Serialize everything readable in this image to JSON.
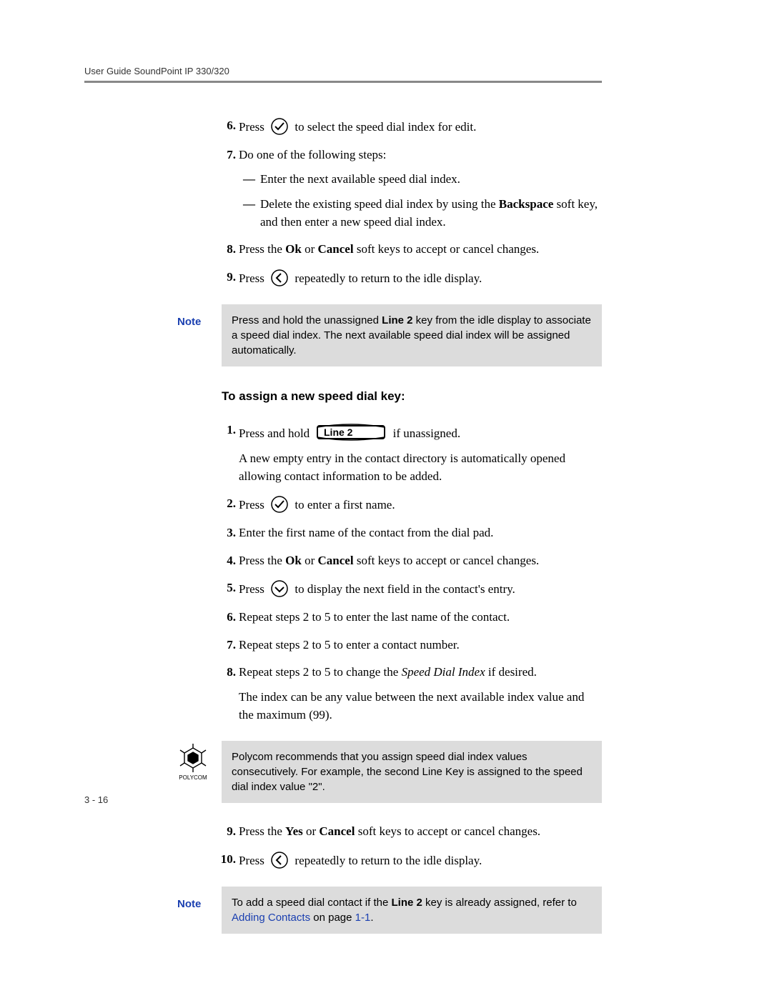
{
  "header": {
    "running": "User Guide SoundPoint IP 330/320"
  },
  "icons": {
    "check_stroke": "#000000",
    "back_stroke": "#000000",
    "down_stroke": "#000000",
    "line2_label": "Line 2",
    "line2_stroke": "#000000"
  },
  "steps_a": [
    {
      "num": "6.",
      "parts": [
        "Press ",
        "{check}",
        " to select the speed dial index for edit."
      ]
    },
    {
      "num": "7.",
      "parts": [
        "Do one of the following steps:"
      ],
      "subs": [
        {
          "dash": "—",
          "text_parts": [
            "Enter the next available speed dial index."
          ]
        },
        {
          "dash": "—",
          "text_parts": [
            "Delete the existing speed dial index by using the ",
            {
              "b": "Backspace"
            },
            " soft key, and then enter a new speed dial index."
          ]
        }
      ]
    },
    {
      "num": "8.",
      "parts": [
        "Press the ",
        {
          "b": "Ok"
        },
        " or ",
        {
          "b": "Cancel"
        },
        " soft keys to accept or cancel changes."
      ]
    },
    {
      "num": "9.",
      "parts": [
        "Press ",
        "{back}",
        " repeatedly to return to the idle display."
      ]
    }
  ],
  "note1": {
    "label": "Note",
    "text_parts": [
      "Press and hold the unassigned ",
      {
        "b": "Line 2"
      },
      " key from the idle display to associate a speed dial index. The next available speed dial index will be assigned automatically."
    ]
  },
  "subheading": "To assign a new speed dial key:",
  "steps_b": [
    {
      "num": "1.",
      "parts": [
        "Press and hold ",
        "{line2}",
        " if unassigned."
      ],
      "after": [
        "A new empty entry in the contact directory is automatically opened allowing contact information to be added."
      ]
    },
    {
      "num": "2.",
      "parts": [
        "Press ",
        "{check}",
        " to enter a first name."
      ]
    },
    {
      "num": "3.",
      "parts": [
        "Enter the first name of the contact from the dial pad."
      ]
    },
    {
      "num": "4.",
      "parts": [
        "Press the ",
        {
          "b": "Ok"
        },
        " or ",
        {
          "b": "Cancel"
        },
        " soft keys to accept or cancel changes."
      ]
    },
    {
      "num": "5.",
      "parts": [
        "Press ",
        "{down}",
        " to display the next field in the contact's entry."
      ]
    },
    {
      "num": "6.",
      "parts": [
        "Repeat steps 2 to 5 to enter the last name of the contact."
      ]
    },
    {
      "num": "7.",
      "parts": [
        "Repeat steps 2 to 5 to enter a contact number."
      ]
    },
    {
      "num": "8.",
      "parts": [
        "Repeat steps 2 to 5 to change the ",
        {
          "i": "Speed Dial Index"
        },
        " if desired."
      ],
      "after": [
        "The index can be any value between the next available index value and the maximum (99)."
      ]
    }
  ],
  "note2": {
    "text_parts": [
      "Polycom recommends that you assign speed dial index values consecutively. For example, the second Line Key is assigned to the speed dial index value \"2\"."
    ]
  },
  "steps_c": [
    {
      "num": "9.",
      "parts": [
        "Press the ",
        {
          "b": "Yes"
        },
        " or ",
        {
          "b": "Cancel"
        },
        " soft keys to accept or cancel changes."
      ]
    },
    {
      "num": "10.",
      "parts": [
        "Press ",
        "{back}",
        " repeatedly to return to the idle display."
      ]
    }
  ],
  "note3": {
    "label": "Note",
    "text_parts": [
      "To add a speed dial contact if the ",
      {
        "b": "Line 2"
      },
      " key is already assigned, refer to ",
      {
        "link": "Adding Contacts"
      },
      " on page ",
      {
        "link": "1-1"
      },
      "."
    ]
  },
  "footer": {
    "page": "3 - 16"
  },
  "colors": {
    "note_bg": "#dcdcdc",
    "link": "#1a3fb0",
    "rule": "#888888",
    "text": "#000000"
  }
}
